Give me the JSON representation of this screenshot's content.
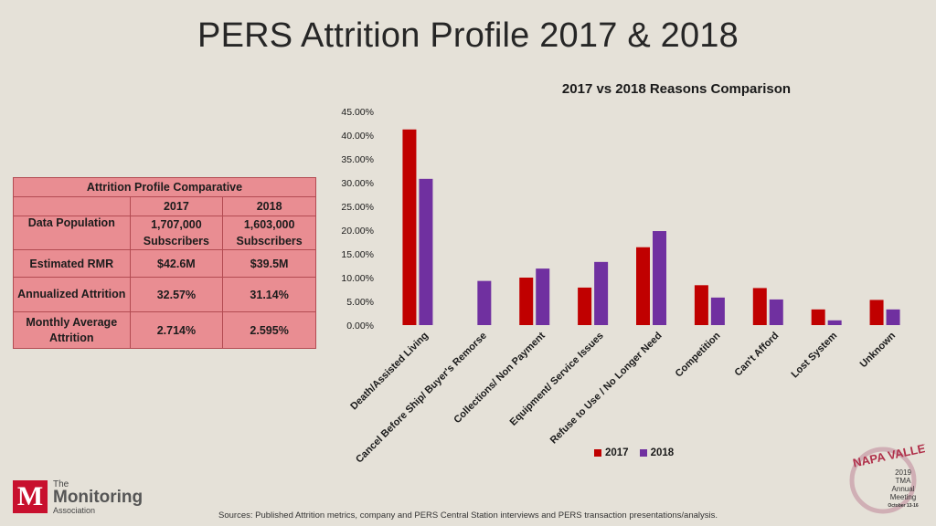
{
  "slide": {
    "title": "PERS Attrition Profile 2017 & 2018",
    "footer": "Sources: Published Attrition metrics, company and PERS Central Station interviews and PERS transaction presentations/analysis."
  },
  "table": {
    "caption": "Attrition Profile Comparative",
    "years": [
      "2017",
      "2018"
    ],
    "rows": [
      {
        "label": "Data Population",
        "v2017": "1,707,000 Subscribers",
        "v2018": "1,603,000 Subscribers"
      },
      {
        "label": "Estimated RMR",
        "v2017": "$42.6M",
        "v2018": "$39.5M"
      },
      {
        "label": "Annualized Attrition",
        "v2017": "32.57%",
        "v2018": "31.14%"
      },
      {
        "label": "Monthly Average Attrition",
        "v2017": "2.714%",
        "v2018": "2.595%"
      }
    ]
  },
  "chart_data": {
    "type": "bar",
    "title": "2017 vs 2018 Reasons Comparison",
    "categories": [
      "Death/Assisted Living",
      "Cancel Before Ship/ Buyer's Remorse",
      "Collections/ Non Payment",
      "Equipment/ Service Issues",
      "Refuse to Use / No Longer Need",
      "Competition",
      "Can't Afford",
      "Lost System",
      "Unknown"
    ],
    "series": [
      {
        "name": "2017",
        "color": "#c00000",
        "values": [
          41.2,
          0,
          10.0,
          7.9,
          16.4,
          8.4,
          7.8,
          3.3,
          5.3
        ]
      },
      {
        "name": "2018",
        "color": "#7030a0",
        "values": [
          30.8,
          9.3,
          11.9,
          13.3,
          19.8,
          5.8,
          5.4,
          1.0,
          3.3
        ]
      }
    ],
    "yticks": [
      "0.00%",
      "5.00%",
      "10.00%",
      "15.00%",
      "20.00%",
      "25.00%",
      "30.00%",
      "35.00%",
      "40.00%",
      "45.00%"
    ],
    "ylim": [
      0,
      45
    ],
    "legend": "bottom"
  },
  "logos": {
    "tma_line1": "The",
    "tma_line2": "Monitoring",
    "tma_line3": "Association",
    "tma_mark": "M",
    "napa_word": "NAPA VALLEY",
    "napa_lines": [
      "2019",
      "TMA",
      "Annual",
      "Meeting",
      "October 13-16"
    ]
  }
}
